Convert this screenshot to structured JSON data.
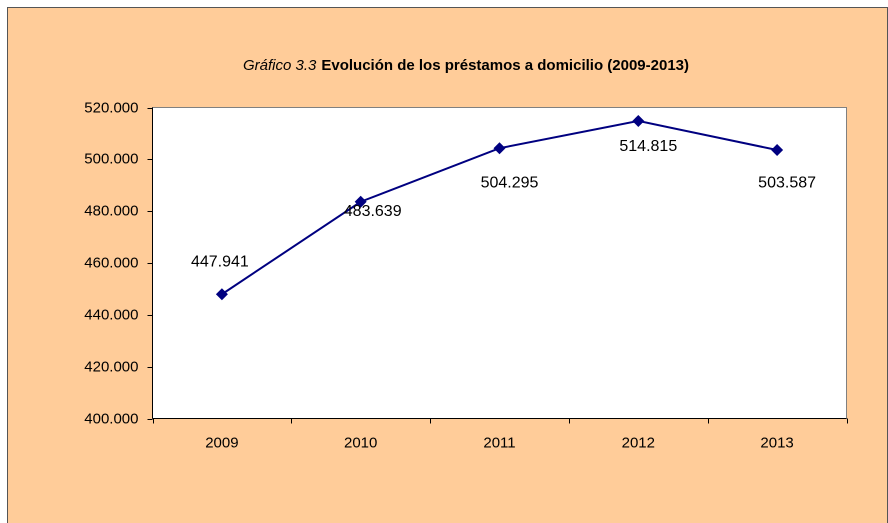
{
  "chart_data": {
    "type": "line",
    "title": [
      "Gráfico 3.3",
      "Evolución de los préstamos a domicilio (2009-2013)"
    ],
    "categories": [
      "2009",
      "2010",
      "2011",
      "2012",
      "2013"
    ],
    "series": [
      {
        "color": "#000080",
        "values": [
          447941,
          483639,
          504295,
          514815,
          503587
        ],
        "value_labels": [
          "447.941",
          "483.639",
          "504.295",
          "514.815",
          "503.587"
        ]
      }
    ],
    "ylim": [
      400000,
      520000
    ],
    "yticks": [
      {
        "value": 400000,
        "label": "400.000"
      },
      {
        "value": 420000,
        "label": "420.000"
      },
      {
        "value": 440000,
        "label": "440.000"
      },
      {
        "value": 460000,
        "label": "460.000"
      },
      {
        "value": 480000,
        "label": "480.000"
      },
      {
        "value": 500000,
        "label": "500.000"
      },
      {
        "value": 520000,
        "label": "520.000"
      }
    ],
    "grid": false
  }
}
